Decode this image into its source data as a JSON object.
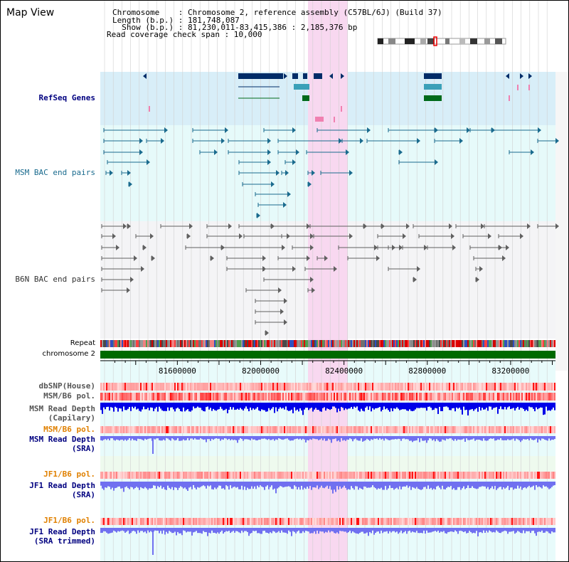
{
  "view_title": "Map View",
  "info": {
    "chromosome_line": "Chromosome    : Chromosome 2, reference assembly (C57BL/6J) (Build 37)",
    "length_line": "Length (b.p.) : 181,748,087",
    "show_line": "  Show (b.p.) : 81,230,011-83,415,386 : 2,185,376 bp",
    "coverage_line": "Read coverage check span : 10,000"
  },
  "tracks": {
    "refseq": "RefSeq Genes",
    "msm_bac": "MSM BAC end pairs",
    "b6n_bac": "B6N BAC end pairs",
    "repeat": "Repeat",
    "chromosome": "chromosome 2",
    "dbsnp": "dbSNP(House)",
    "msm_b6_pol_1": "MSM/B6 pol.",
    "msm_depth_cap_1": "MSM Read Depth",
    "msm_depth_cap_2": "(Capilary)",
    "msm_b6_pol_2": "MSM/B6 pol.",
    "msm_depth_sra_1": "MSM Read Depth",
    "msm_depth_sra_2": "(SRA)",
    "jf1_b6_pol_1": "JF1/B6 pol.",
    "jf1_depth_sra_1": "JF1 Read Depth",
    "jf1_depth_sra_2": "(SRA)",
    "jf1_b6_pol_2": "JF1/B6 pol.",
    "jf1_depth_trim_1": "JF1 Read Depth",
    "jf1_depth_trim_2": "(SRA trimmed)"
  },
  "axis": {
    "ticks": [
      {
        "pos": 81600000,
        "label": "81600000"
      },
      {
        "pos": 82000000,
        "label": "82000000"
      },
      {
        "pos": 82400000,
        "label": "82400000"
      },
      {
        "pos": 82800000,
        "label": "82800000"
      },
      {
        "pos": 83200000,
        "label": "83200000"
      }
    ]
  },
  "colors": {
    "refseq_bg": "#d8eef8",
    "bac_bg": "#e6fafa",
    "highlight": "#f8d8f0",
    "gene_dark": "#002c68",
    "gene_teal": "#3aa0b8",
    "gene_green": "#006a1a",
    "gene_pink": "#f080b0",
    "msm_pair": "#1a6b8e",
    "b6n_pair": "#606060",
    "chrom_green": "#006a00",
    "depth_blue": "#0000e8",
    "depth_lavender": "#7070f0",
    "label_navy": "#000080",
    "label_orange": "#e08000"
  }
}
